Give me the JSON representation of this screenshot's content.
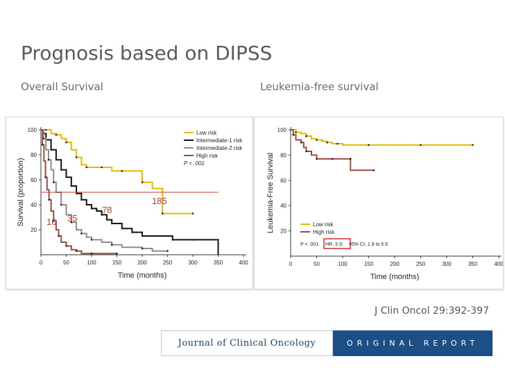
{
  "slide": {
    "title": "Prognosis based on DIPSS",
    "subtitle_left": "Overall Survival",
    "subtitle_right": "Leukemia-free survival",
    "citation": "J Clin Oncol 29:392-397",
    "journal_name": "Journal of Clinical Oncology",
    "journal_section": "ORIGINAL REPORT"
  },
  "colors": {
    "low": "#e6b800",
    "int1": "#111111",
    "int2": "#8c8c8c",
    "high": "#9e4a3a",
    "annotation": "#c0392b",
    "hr_box": "#d32f2f"
  },
  "chart_data": [
    {
      "type": "line",
      "ylabel": "Survival (proportion)",
      "xlabel": "Time (months)",
      "xlim": [
        0,
        400
      ],
      "ylim": [
        0,
        100
      ],
      "xticks": [
        0,
        50,
        100,
        150,
        200,
        250,
        300,
        350,
        400
      ],
      "yticks": [
        20,
        40,
        60,
        80,
        100
      ],
      "legend": [
        "Low risk",
        "Intermediate-1 risk",
        "Intermediate-2 risk",
        "High risk"
      ],
      "pvalue": "P < .001",
      "annotations": [
        "185",
        "78",
        "35",
        "16"
      ],
      "median_line_y": 50,
      "series": [
        {
          "name": "Low risk",
          "color": "low",
          "x": [
            0,
            10,
            20,
            30,
            40,
            50,
            60,
            70,
            80,
            90,
            100,
            120,
            140,
            160,
            180,
            200,
            220,
            240,
            260,
            300
          ],
          "y": [
            100,
            100,
            97,
            96,
            93,
            90,
            84,
            78,
            72,
            70,
            70,
            70,
            67,
            67,
            67,
            58,
            53,
            33,
            33,
            33
          ]
        },
        {
          "name": "Intermediate-1 risk",
          "color": "int1",
          "x": [
            0,
            5,
            10,
            20,
            30,
            40,
            50,
            60,
            70,
            80,
            90,
            100,
            110,
            120,
            130,
            140,
            160,
            180,
            200,
            220,
            240,
            260,
            280,
            300,
            320,
            350,
            350
          ],
          "y": [
            100,
            97,
            92,
            84,
            76,
            68,
            62,
            55,
            49,
            44,
            40,
            37,
            35,
            32,
            28,
            25,
            21,
            18,
            15,
            15,
            15,
            12,
            12,
            12,
            12,
            12,
            0
          ]
        },
        {
          "name": "Intermediate-2 risk",
          "color": "int2",
          "x": [
            0,
            5,
            10,
            15,
            20,
            25,
            30,
            40,
            50,
            60,
            70,
            80,
            90,
            100,
            120,
            140,
            160,
            200,
            220,
            250
          ],
          "y": [
            100,
            93,
            84,
            76,
            68,
            58,
            50,
            40,
            32,
            26,
            20,
            17,
            14,
            12,
            10,
            8,
            6,
            5,
            3,
            3
          ]
        },
        {
          "name": "High risk",
          "color": "high",
          "x": [
            0,
            3,
            6,
            9,
            12,
            16,
            20,
            25,
            30,
            35,
            40,
            50,
            60,
            70,
            80,
            100,
            120,
            150
          ],
          "y": [
            100,
            88,
            75,
            62,
            52,
            44,
            35,
            27,
            20,
            15,
            10,
            7,
            4,
            3,
            1,
            1,
            1,
            1
          ]
        }
      ]
    },
    {
      "type": "line",
      "ylabel": "Leukemia-Free Survival",
      "xlabel": "Time (months)",
      "xlim": [
        0,
        400
      ],
      "ylim": [
        0,
        100
      ],
      "xticks": [
        0,
        50,
        100,
        150,
        200,
        250,
        300,
        350,
        400
      ],
      "yticks": [
        20,
        40,
        60,
        80,
        100
      ],
      "legend": [
        "Low risk",
        "High risk"
      ],
      "stats_text": {
        "p": "P < .001",
        "hr": "HR, 3.3;",
        "ci": "95% CI, 1.9 to 5.6"
      },
      "series": [
        {
          "name": "Low risk",
          "color": "low",
          "x": [
            0,
            10,
            20,
            30,
            40,
            50,
            60,
            70,
            80,
            90,
            100,
            150,
            200,
            250,
            300,
            350
          ],
          "y": [
            100,
            98,
            97,
            95,
            93,
            92,
            91,
            90,
            89,
            89,
            88,
            88,
            88,
            88,
            88,
            88
          ]
        },
        {
          "name": "High risk",
          "color": "high",
          "x": [
            0,
            5,
            10,
            20,
            25,
            30,
            40,
            50,
            60,
            80,
            100,
            115,
            115,
            160
          ],
          "y": [
            100,
            96,
            92,
            90,
            86,
            83,
            80,
            77,
            77,
            77,
            77,
            77,
            68,
            68
          ]
        }
      ]
    }
  ]
}
